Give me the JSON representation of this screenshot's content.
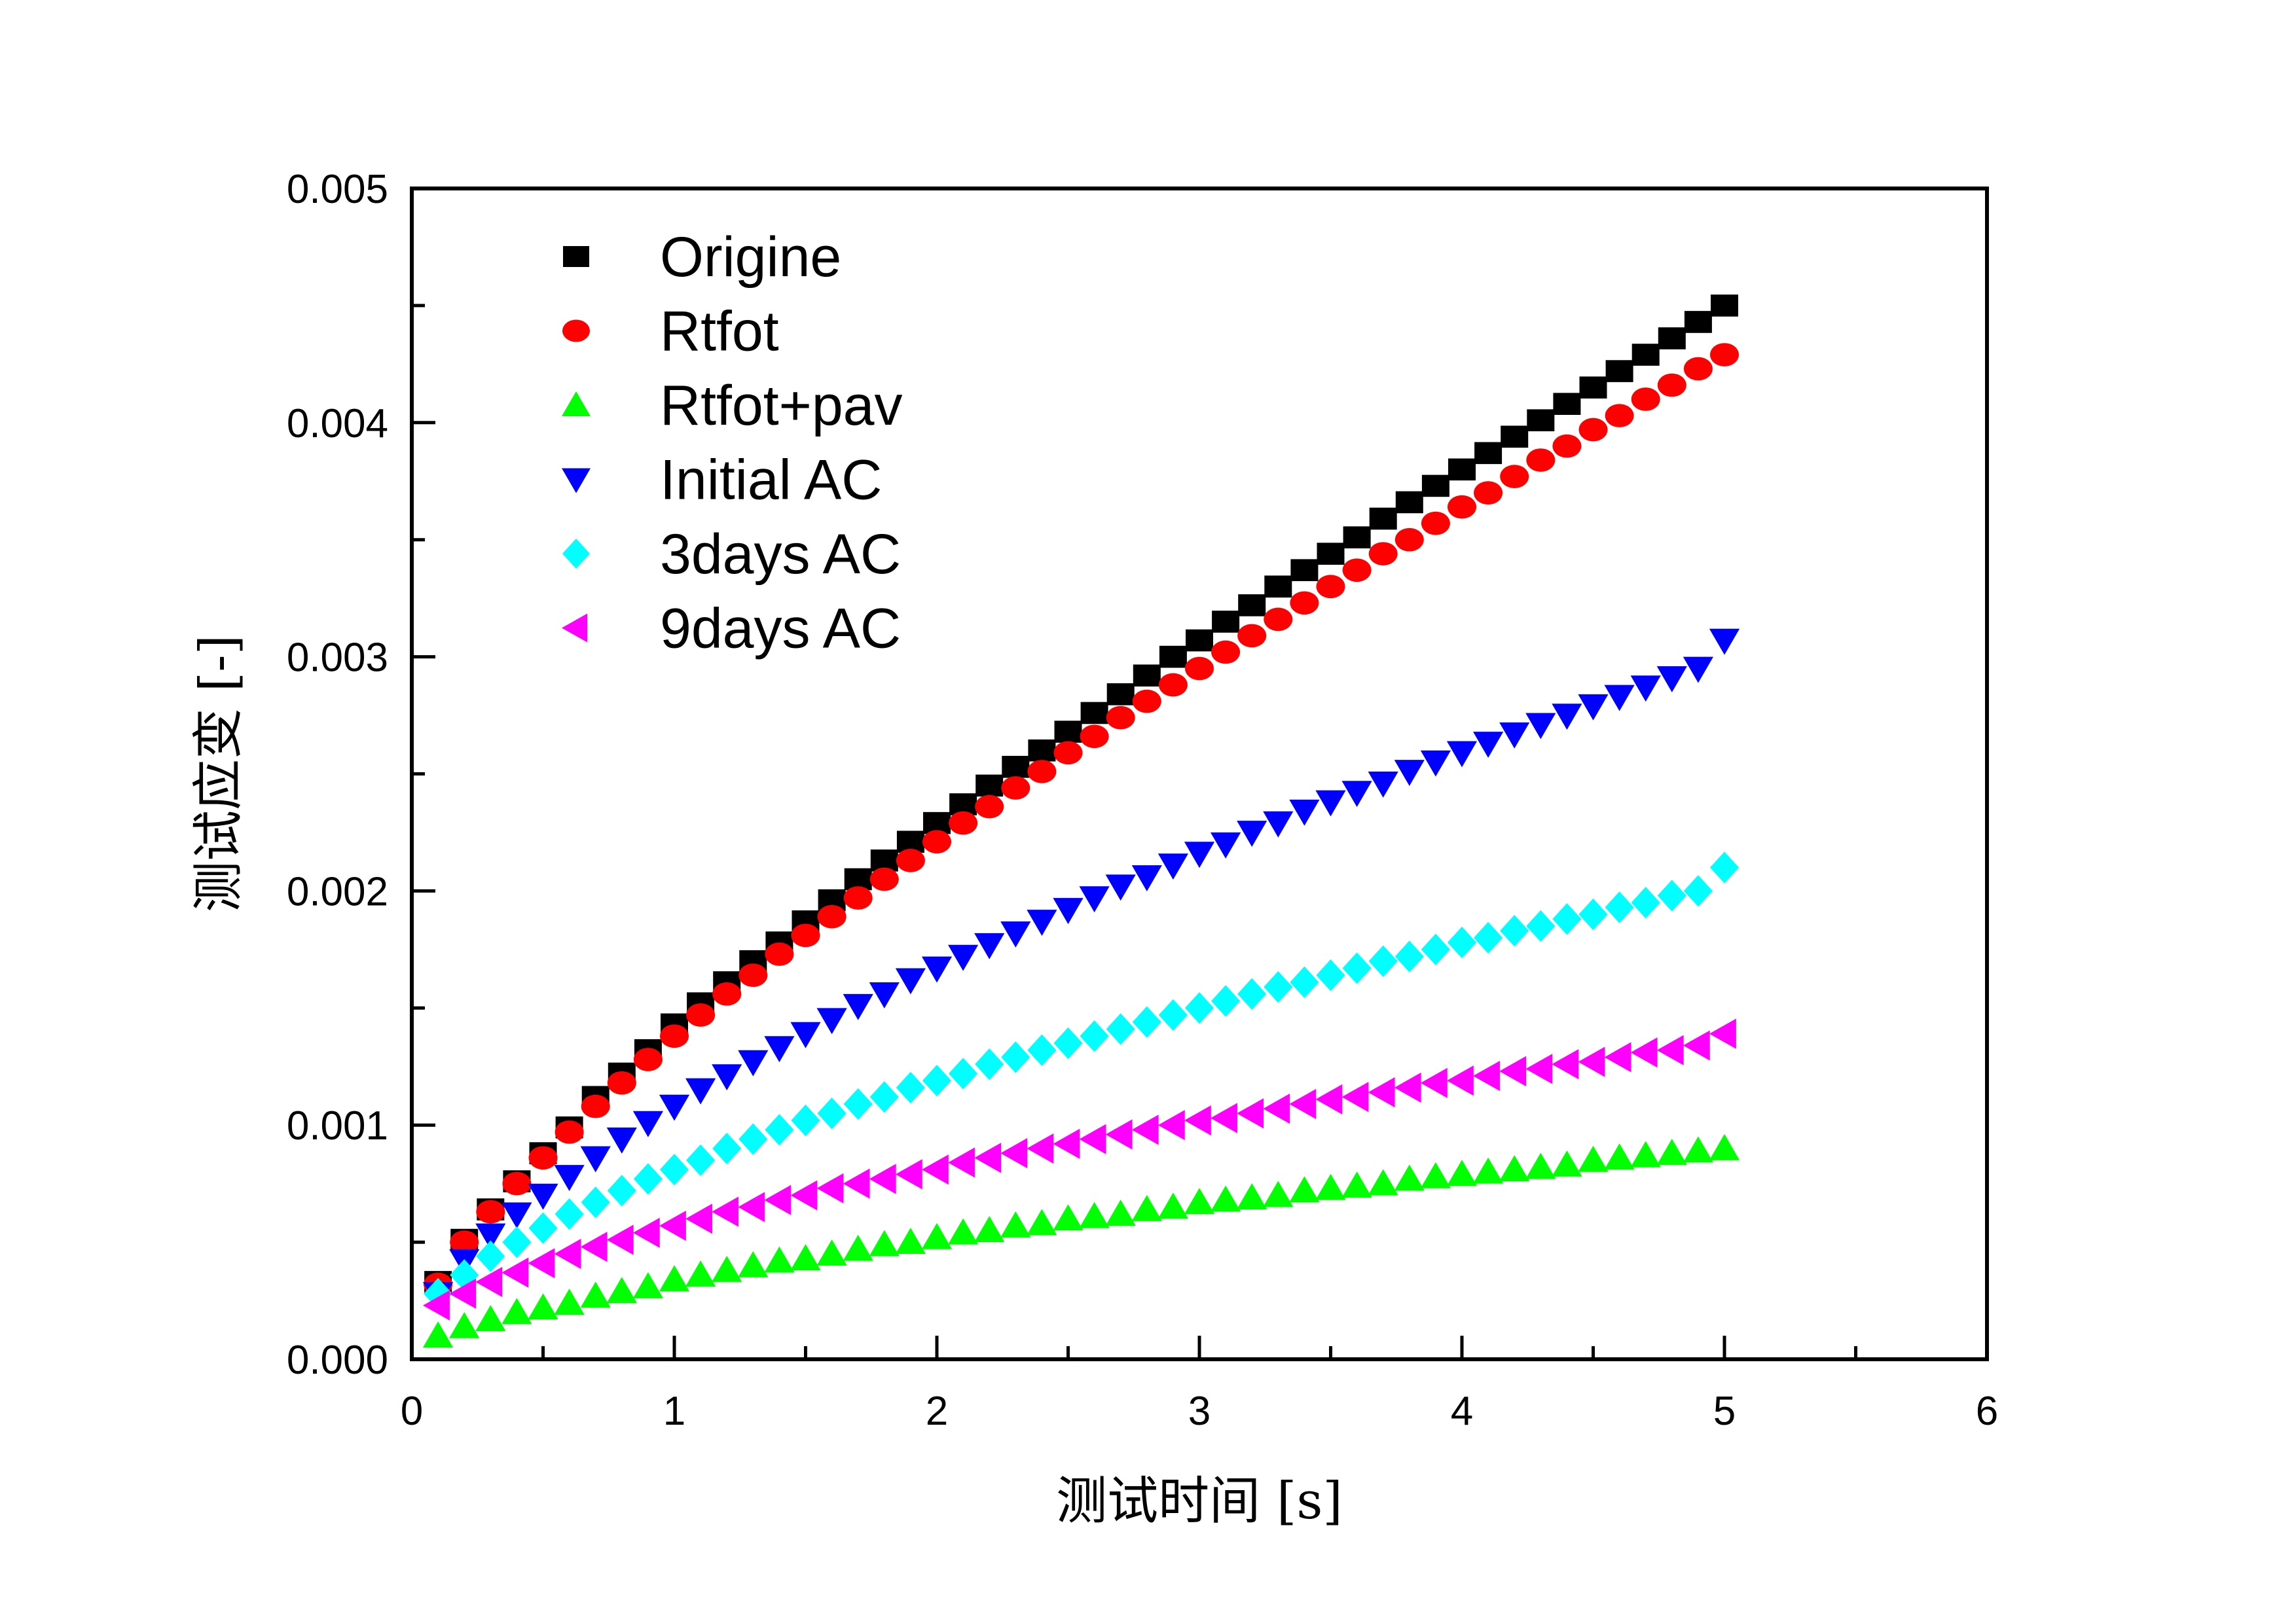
{
  "chart_data": {
    "type": "scatter",
    "title": "",
    "xlabel": "测试时间 [s]",
    "ylabel": "测试应变 [-]",
    "xlim": [
      0,
      6
    ],
    "ylim": [
      0,
      0.005
    ],
    "x_ticks": [
      "0",
      "1",
      "2",
      "3",
      "4",
      "5",
      "6"
    ],
    "y_ticks": [
      "0.000",
      "0.001",
      "0.002",
      "0.003",
      "0.004",
      "0.005"
    ],
    "x_tick_values": [
      0,
      1,
      2,
      3,
      4,
      5,
      6
    ],
    "y_tick_values": [
      0,
      0.001,
      0.002,
      0.003,
      0.004,
      0.005
    ],
    "grid": false,
    "legend_position": "top-left",
    "x": [
      0.1,
      0.2,
      0.3,
      0.4,
      0.5,
      0.6,
      0.7,
      0.8,
      0.9,
      1.0,
      1.1,
      1.2,
      1.3,
      1.4,
      1.5,
      1.6,
      1.7,
      1.8,
      1.9,
      2.0,
      2.1,
      2.2,
      2.3,
      2.4,
      2.5,
      2.6,
      2.7,
      2.8,
      2.9,
      3.0,
      3.1,
      3.2,
      3.3,
      3.4,
      3.5,
      3.6,
      3.7,
      3.8,
      3.9,
      4.0,
      4.1,
      4.2,
      4.3,
      4.4,
      4.5,
      4.6,
      4.7,
      4.8,
      4.9,
      5.0
    ],
    "series": [
      {
        "name": "Origine",
        "marker": "square",
        "color": "#000000",
        "values": [
          0.00033,
          0.00051,
          0.00064,
          0.00076,
          0.00088,
          0.00099,
          0.00112,
          0.00122,
          0.00132,
          0.00143,
          0.00152,
          0.00161,
          0.0017,
          0.00178,
          0.00187,
          0.00196,
          0.00205,
          0.00213,
          0.00221,
          0.00229,
          0.00237,
          0.00245,
          0.00253,
          0.0026,
          0.00268,
          0.00276,
          0.00284,
          0.00292,
          0.003,
          0.00307,
          0.00315,
          0.00322,
          0.0033,
          0.00337,
          0.00344,
          0.00351,
          0.00359,
          0.00366,
          0.00373,
          0.0038,
          0.00387,
          0.00394,
          0.00401,
          0.00408,
          0.00415,
          0.00422,
          0.00429,
          0.00436,
          0.00443,
          0.0045
        ]
      },
      {
        "name": "Rtfot",
        "marker": "circle",
        "color": "#ff0000",
        "values": [
          0.00032,
          0.0005,
          0.00063,
          0.00075,
          0.00086,
          0.00097,
          0.00108,
          0.00118,
          0.00128,
          0.00138,
          0.00147,
          0.00156,
          0.00164,
          0.00173,
          0.00181,
          0.00189,
          0.00197,
          0.00205,
          0.00213,
          0.00221,
          0.00229,
          0.00236,
          0.00244,
          0.00251,
          0.00259,
          0.00266,
          0.00274,
          0.00281,
          0.00288,
          0.00295,
          0.00302,
          0.00309,
          0.00316,
          0.00323,
          0.0033,
          0.00337,
          0.00344,
          0.0035,
          0.00357,
          0.00364,
          0.0037,
          0.00377,
          0.00384,
          0.0039,
          0.00397,
          0.00403,
          0.0041,
          0.00416,
          0.00423,
          0.00429
        ]
      },
      {
        "name": "Rtfot+pav",
        "marker": "triangle-up",
        "color": "#00ff00",
        "values": [
          0.0001,
          0.00014,
          0.00017,
          0.0002,
          0.00022,
          0.00024,
          0.00027,
          0.00029,
          0.00031,
          0.00034,
          0.00036,
          0.00038,
          0.0004,
          0.00042,
          0.00043,
          0.00045,
          0.00047,
          0.00049,
          0.0005,
          0.00052,
          0.00054,
          0.00055,
          0.00057,
          0.00058,
          0.0006,
          0.00061,
          0.00062,
          0.00064,
          0.00065,
          0.00067,
          0.00068,
          0.00069,
          0.0007,
          0.00072,
          0.00073,
          0.00074,
          0.00075,
          0.00077,
          0.00078,
          0.00079,
          0.0008,
          0.00081,
          0.00082,
          0.00083,
          0.00085,
          0.00086,
          0.00087,
          0.00088,
          0.00089,
          0.0009
        ]
      },
      {
        "name": "Initial AC",
        "marker": "triangle-down",
        "color": "#0000ff",
        "values": [
          0.00028,
          0.00042,
          0.00053,
          0.00062,
          0.0007,
          0.00078,
          0.00086,
          0.00094,
          0.00101,
          0.00108,
          0.00115,
          0.00121,
          0.00127,
          0.00133,
          0.00139,
          0.00145,
          0.00151,
          0.00156,
          0.00162,
          0.00167,
          0.00172,
          0.00177,
          0.00182,
          0.00187,
          0.00192,
          0.00197,
          0.00202,
          0.00206,
          0.00211,
          0.00216,
          0.0022,
          0.00225,
          0.00229,
          0.00234,
          0.00238,
          0.00242,
          0.00246,
          0.00251,
          0.00255,
          0.00259,
          0.00263,
          0.00267,
          0.00271,
          0.00275,
          0.00279,
          0.00283,
          0.00287,
          0.00291,
          0.00295,
          0.00307
        ]
      },
      {
        "name": "3days AC",
        "marker": "diamond",
        "color": "#00ffff",
        "values": [
          0.00028,
          0.00036,
          0.00044,
          0.0005,
          0.00056,
          0.00062,
          0.00067,
          0.00072,
          0.00077,
          0.00081,
          0.00085,
          0.0009,
          0.00094,
          0.00098,
          0.00102,
          0.00105,
          0.00109,
          0.00112,
          0.00116,
          0.00119,
          0.00122,
          0.00126,
          0.00129,
          0.00132,
          0.00135,
          0.00138,
          0.00141,
          0.00144,
          0.00147,
          0.0015,
          0.00153,
          0.00156,
          0.00159,
          0.00161,
          0.00164,
          0.00167,
          0.0017,
          0.00172,
          0.00175,
          0.00178,
          0.0018,
          0.00183,
          0.00185,
          0.00188,
          0.0019,
          0.00193,
          0.00195,
          0.00198,
          0.002,
          0.0021
        ]
      },
      {
        "name": "9days AC",
        "marker": "triangle-left",
        "color": "#ff00ff",
        "values": [
          0.00023,
          0.00028,
          0.00033,
          0.00037,
          0.00041,
          0.00045,
          0.00048,
          0.00051,
          0.00054,
          0.00057,
          0.0006,
          0.00063,
          0.00065,
          0.00068,
          0.0007,
          0.00073,
          0.00075,
          0.00077,
          0.00079,
          0.00081,
          0.00084,
          0.00086,
          0.00088,
          0.0009,
          0.00092,
          0.00094,
          0.00096,
          0.00098,
          0.001,
          0.00102,
          0.00103,
          0.00105,
          0.00107,
          0.00109,
          0.00111,
          0.00112,
          0.00114,
          0.00116,
          0.00118,
          0.00119,
          0.00121,
          0.00123,
          0.00124,
          0.00126,
          0.00127,
          0.00129,
          0.00131,
          0.00132,
          0.00134,
          0.00139
        ]
      }
    ]
  }
}
